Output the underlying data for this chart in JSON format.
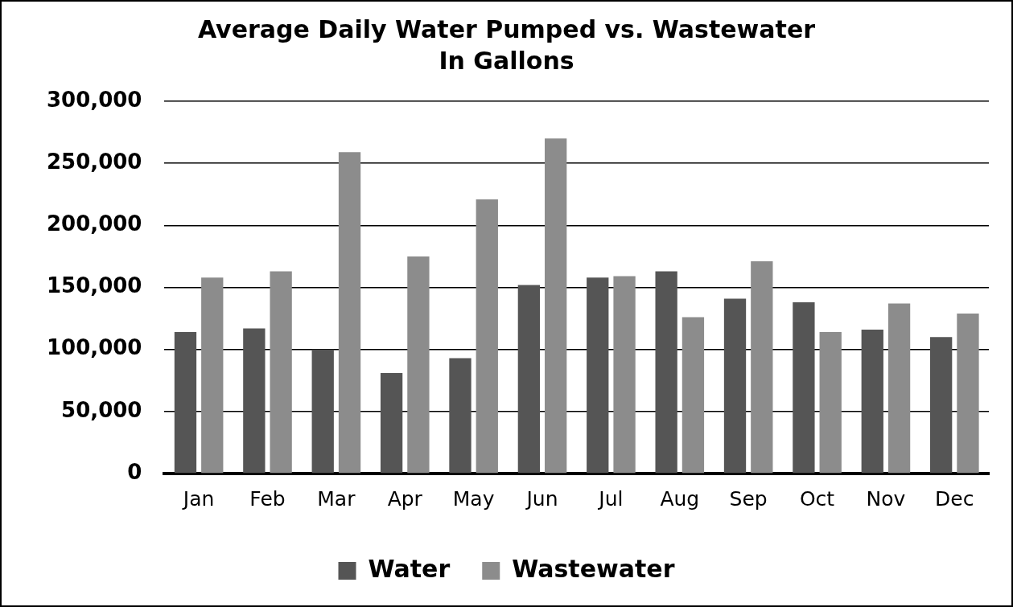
{
  "chart_data": {
    "type": "bar",
    "title": "Average Daily Water Pumped vs. Wastewater\nIn Gallons",
    "categories": [
      "Jan",
      "Feb",
      "Mar",
      "Apr",
      "May",
      "Jun",
      "Jul",
      "Aug",
      "Sep",
      "Oct",
      "Nov",
      "Dec"
    ],
    "series": [
      {
        "name": "Water",
        "color": "#555555",
        "values": [
          114000,
          117000,
          100000,
          81000,
          93000,
          152000,
          158000,
          163000,
          141000,
          138000,
          116000,
          110000
        ]
      },
      {
        "name": "Wastewater",
        "color": "#8c8c8c",
        "values": [
          158000,
          163000,
          259000,
          175000,
          221000,
          270000,
          159000,
          126000,
          171000,
          114000,
          137000,
          129000
        ]
      }
    ],
    "ylim": [
      0,
      300000
    ],
    "yticks": [
      0,
      {
        "value": 50000,
        "label": "50,000"
      },
      {
        "value": 100000,
        "label": "100,000"
      },
      {
        "value": 150000,
        "label": "150,000"
      },
      {
        "value": 200000,
        "label": "200,000"
      },
      {
        "value": 250000,
        "label": "250,000"
      },
      {
        "value": 300000,
        "label": "300,000"
      }
    ],
    "grid": "y",
    "legend": "bottom"
  }
}
